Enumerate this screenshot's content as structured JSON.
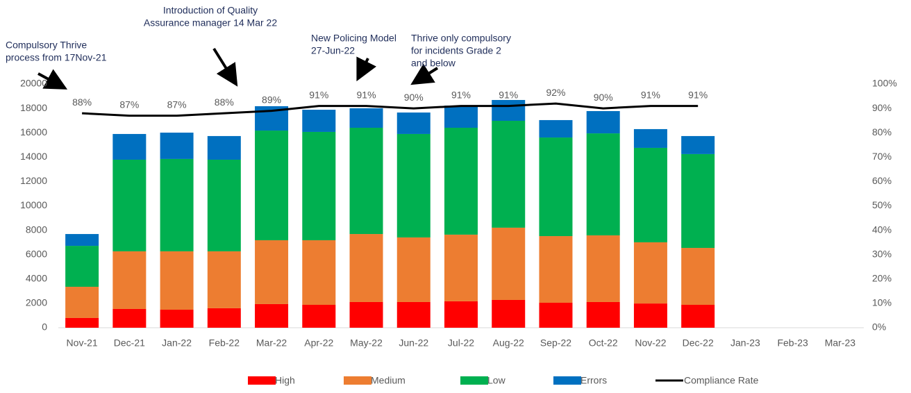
{
  "chart_data": {
    "type": "bar",
    "categories": [
      "Nov-21",
      "Dec-21",
      "Jan-22",
      "Feb-22",
      "Mar-22",
      "Apr-22",
      "May-22",
      "Jun-22",
      "Jul-22",
      "Aug-22",
      "Sep-22",
      "Oct-22",
      "Nov-22",
      "Dec-22",
      "Jan-23",
      "Feb-23",
      "Mar-23"
    ],
    "stacked": true,
    "series": [
      {
        "name": "High",
        "color": "#ff0000",
        "values": [
          800,
          1540,
          1480,
          1600,
          1940,
          1880,
          2110,
          2110,
          2170,
          2280,
          2050,
          2110,
          1990,
          1880,
          null,
          null,
          null
        ]
      },
      {
        "name": "Medium",
        "color": "#ed7d31",
        "values": [
          2560,
          4730,
          4790,
          4670,
          5240,
          5300,
          5580,
          5300,
          5470,
          5930,
          5470,
          5470,
          5020,
          4670,
          null,
          null,
          null
        ]
      },
      {
        "name": "Low",
        "color": "#00b050",
        "values": [
          3360,
          7520,
          7580,
          7520,
          9000,
          8890,
          8720,
          8490,
          8770,
          8770,
          8090,
          8370,
          7750,
          7700,
          null,
          null,
          null
        ]
      },
      {
        "name": "Errors",
        "color": "#0070c0",
        "values": [
          970,
          2110,
          2160,
          1940,
          2000,
          1820,
          1600,
          1760,
          1820,
          1710,
          1430,
          1830,
          1540,
          1480,
          null,
          null,
          null
        ]
      },
      {
        "name": "Compliance Rate",
        "type": "line",
        "axis": "y2",
        "color": "#000000",
        "values": [
          88,
          87,
          87,
          88,
          89,
          91,
          91,
          90,
          91,
          91,
          92,
          90,
          91,
          91,
          null,
          null,
          null
        ],
        "value_labels": [
          "88%",
          "87%",
          "87%",
          "88%",
          "89%",
          "91%",
          "91%",
          "90%",
          "91%",
          "91%",
          "92%",
          "90%",
          "91%",
          "91%",
          null,
          null,
          null
        ]
      }
    ],
    "ylim": [
      0,
      20000
    ],
    "yticks": [
      0,
      2000,
      4000,
      6000,
      8000,
      10000,
      12000,
      14000,
      16000,
      18000,
      20000
    ],
    "y2lim": [
      0,
      100
    ],
    "y2ticks": [
      {
        "value": 0,
        "label": "0%"
      },
      {
        "value": 10,
        "label": "10%"
      },
      {
        "value": 20,
        "label": "20%"
      },
      {
        "value": 30,
        "label": "30%"
      },
      {
        "value": 40,
        "label": "40%"
      },
      {
        "value": 50,
        "label": "50%"
      },
      {
        "value": 60,
        "label": "60%"
      },
      {
        "value": 70,
        "label": "70%"
      },
      {
        "value": 80,
        "label": "80%"
      },
      {
        "value": 90,
        "label": "90%"
      },
      {
        "value": 100,
        "label": "100%"
      }
    ],
    "legend": "bottom",
    "annotations": [
      {
        "lines": [
          "Compulsory Thrive",
          "process from 17Nov-21"
        ]
      },
      {
        "lines": [
          "Introduction of Quality",
          "Assurance manager 14 Mar 22"
        ]
      },
      {
        "lines": [
          "New Policing Model",
          "27-Jun-22"
        ]
      },
      {
        "lines": [
          "Thrive only compulsory",
          "for incidents Grade 2",
          "and below"
        ]
      }
    ]
  }
}
